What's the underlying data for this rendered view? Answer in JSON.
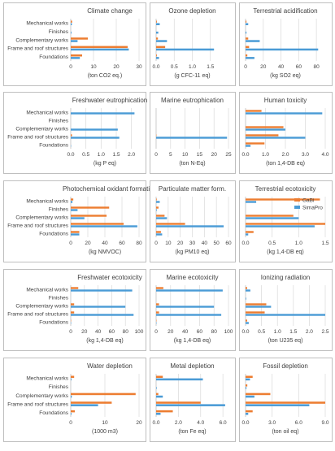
{
  "categories": [
    "Mechanical works",
    "Finishes",
    "Complementary works",
    "Frame and roof structures",
    "Foundations"
  ],
  "legend": [
    "GaBi",
    "SimaPro"
  ],
  "colors": {
    "gabi": "#ed7d31",
    "simapro": "#4a9bd6",
    "grid": "#d9d9d9",
    "border": "#bfbfbf",
    "text": "#404040"
  },
  "chart_data": [
    {
      "type": "bar",
      "title": "Climate change",
      "xlabel": "(ton CO2 eq.)",
      "xlim": [
        0,
        30
      ],
      "ticks": [
        "0",
        "10",
        "20",
        "30"
      ],
      "series": [
        {
          "name": "GaBi",
          "values": [
            0.6,
            0,
            7.5,
            25,
            5
          ]
        },
        {
          "name": "SimaPro",
          "values": [
            0.5,
            0.3,
            3,
            25.5,
            4
          ]
        }
      ]
    },
    {
      "type": "bar",
      "title": "Ozone depletion",
      "xlabel": "(g CFC-11 eq)",
      "xlim": [
        0,
        2.0
      ],
      "ticks": [
        "0.0",
        "0.5",
        "1.0",
        "1.5"
      ],
      "series": [
        {
          "name": "GaBi",
          "values": [
            0.02,
            0,
            0.05,
            0.25,
            0.02
          ]
        },
        {
          "name": "SimaPro",
          "values": [
            0.1,
            0.06,
            0.3,
            1.6,
            0.08
          ]
        }
      ]
    },
    {
      "type": "bar",
      "title": "Terrestrial acidification",
      "xlabel": "(kg SO2 eq)",
      "xlim": [
        0,
        90
      ],
      "ticks": [
        "0",
        "20",
        "40",
        "60",
        "80"
      ],
      "series": [
        {
          "name": "GaBi",
          "values": [
            1,
            0,
            3,
            4,
            2
          ]
        },
        {
          "name": "SimaPro",
          "values": [
            3,
            1,
            16,
            82,
            10
          ]
        }
      ]
    },
    {
      "type": "bar",
      "title": "Freshwater eutrophication",
      "xlabel": "(kg P eq)",
      "xlim": [
        0,
        2.25
      ],
      "ticks": [
        "0.0",
        "0.5",
        "1.0",
        "1.5",
        "2.0"
      ],
      "series": [
        {
          "name": "GaBi",
          "values": [
            0,
            0,
            0,
            0.04,
            0
          ]
        },
        {
          "name": "SimaPro",
          "values": [
            2.1,
            0,
            1.55,
            1.6,
            0.01
          ]
        }
      ]
    },
    {
      "type": "bar",
      "title": "Marine eutrophication",
      "xlabel": "(ton N-Eq)",
      "xlim": [
        0,
        25
      ],
      "ticks": [
        "0",
        "5",
        "10",
        "15",
        "20",
        "25"
      ],
      "series": [
        {
          "name": "GaBi",
          "values": [
            0,
            0,
            0,
            0.1,
            0
          ]
        },
        {
          "name": "SimaPro",
          "values": [
            0,
            0,
            0,
            24.5,
            0
          ]
        }
      ]
    },
    {
      "type": "bar",
      "title": "Human toxicity",
      "xlabel": "(ton 1,4-DB eq)",
      "xlim": [
        0,
        4.0
      ],
      "ticks": [
        "0.0",
        "1.0",
        "2.0",
        "3.0",
        "4.0"
      ],
      "series": [
        {
          "name": "GaBi",
          "values": [
            0.8,
            0,
            1.9,
            1.65,
            0.95
          ]
        },
        {
          "name": "SimaPro",
          "values": [
            3.85,
            0,
            2.0,
            3.0,
            0.25
          ]
        }
      ]
    },
    {
      "type": "bar",
      "title": "Photochemical oxidant formation",
      "xlabel": "(kg NMVOC)",
      "xlim": [
        0,
        80
      ],
      "ticks": [
        "0",
        "20",
        "40",
        "60",
        "80"
      ],
      "series": [
        {
          "name": "GaBi",
          "values": [
            3,
            45,
            42,
            62,
            10
          ]
        },
        {
          "name": "SimaPro",
          "values": [
            2,
            8,
            16,
            78,
            10
          ]
        }
      ]
    },
    {
      "type": "bar",
      "title": "Particulate matter form.",
      "xlabel": "(kg PM10 eq)",
      "xlim": [
        0,
        60
      ],
      "ticks": [
        "0",
        "10",
        "20",
        "30",
        "40",
        "50",
        "60"
      ],
      "series": [
        {
          "name": "GaBi",
          "values": [
            0.5,
            2,
            7,
            24,
            4
          ]
        },
        {
          "name": "SimaPro",
          "values": [
            3,
            0.5,
            9,
            56,
            5
          ]
        }
      ]
    },
    {
      "type": "bar",
      "title": "Terrestrial ecotoxicity",
      "xlabel": "(kg 1,4-DB eq)",
      "xlim": [
        0,
        1.5
      ],
      "ticks": [
        "0.0",
        "0.5",
        "1.0",
        "1.5"
      ],
      "series": [
        {
          "name": "GaBi",
          "values": [
            1.4,
            0,
            0.9,
            1.5,
            0.15
          ]
        },
        {
          "name": "SimaPro",
          "values": [
            0.2,
            0,
            1.0,
            1.3,
            0.05
          ]
        }
      ]
    },
    {
      "type": "bar",
      "title": "Freshwater ecotoxicity",
      "xlabel": "(kg 1,4-DB eq)",
      "xlim": [
        0,
        100
      ],
      "ticks": [
        "0",
        "20",
        "40",
        "60",
        "80",
        "100"
      ],
      "series": [
        {
          "name": "GaBi",
          "values": [
            11,
            0,
            5,
            5,
            0.5
          ]
        },
        {
          "name": "SimaPro",
          "values": [
            90,
            0,
            80,
            92,
            0.5
          ]
        }
      ]
    },
    {
      "type": "bar",
      "title": "Marine ecotoxicity",
      "xlabel": "(kg 1,4-DB eq)",
      "xlim": [
        0,
        100
      ],
      "ticks": [
        "0",
        "20",
        "40",
        "60",
        "80",
        "100"
      ],
      "series": [
        {
          "name": "GaBi",
          "values": [
            10,
            0,
            4,
            4,
            0.5
          ]
        },
        {
          "name": "SimaPro",
          "values": [
            92,
            0,
            80,
            90,
            0.5
          ]
        }
      ]
    },
    {
      "type": "bar",
      "title": "Ionizing radiation",
      "xlabel": "(ton U235 eq)",
      "xlim": [
        0,
        2.5
      ],
      "ticks": [
        "0.0",
        "0.5",
        "1.0",
        "1.5",
        "2.0",
        "2.5"
      ],
      "series": [
        {
          "name": "GaBi",
          "values": [
            0.05,
            0,
            0.65,
            0.6,
            0.05
          ]
        },
        {
          "name": "SimaPro",
          "values": [
            0.15,
            0.02,
            0.8,
            2.5,
            0.1
          ]
        }
      ]
    },
    {
      "type": "bar",
      "title": "Water depletion",
      "xlabel": "(1000 m3)",
      "xlim": [
        0,
        20
      ],
      "ticks": [
        "0",
        "10",
        "20"
      ],
      "series": [
        {
          "name": "GaBi",
          "values": [
            1,
            0,
            19,
            12,
            1.2
          ]
        },
        {
          "name": "SimaPro",
          "values": [
            0.2,
            0,
            0.3,
            8,
            0.2
          ]
        }
      ]
    },
    {
      "type": "bar",
      "title": "Metal depletion",
      "xlabel": "(ton Fe eq)",
      "xlim": [
        0,
        6.5
      ],
      "ticks": [
        "0.0",
        "2.0",
        "4.0",
        "6.0"
      ],
      "series": [
        {
          "name": "GaBi",
          "values": [
            0.6,
            0,
            0.2,
            4.0,
            1.5
          ]
        },
        {
          "name": "SimaPro",
          "values": [
            4.2,
            0.05,
            0.6,
            6.2,
            0.4
          ]
        }
      ]
    },
    {
      "type": "bar",
      "title": "Fossil depletion",
      "xlabel": "(ton oil eq)",
      "xlim": [
        0,
        9.0
      ],
      "ticks": [
        "0.0",
        "3.0",
        "6.0",
        "9.0"
      ],
      "series": [
        {
          "name": "GaBi",
          "values": [
            0.8,
            0.2,
            2.8,
            9.0,
            0.8
          ]
        },
        {
          "name": "SimaPro",
          "values": [
            0.5,
            0.1,
            1.0,
            7.2,
            0.3
          ]
        }
      ]
    }
  ]
}
